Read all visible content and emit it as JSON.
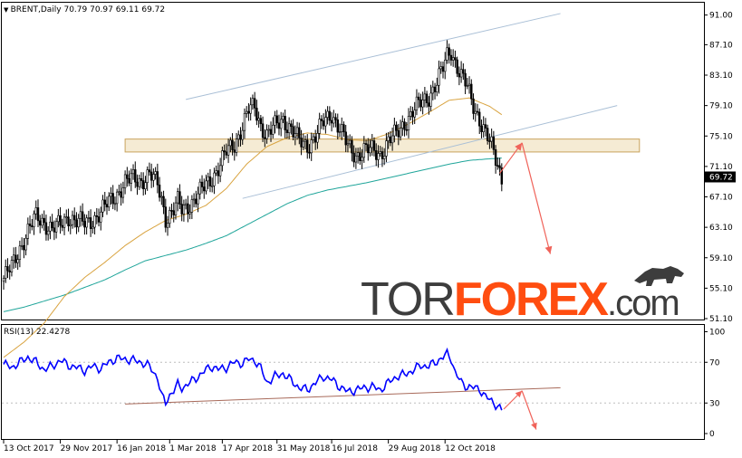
{
  "chart_data": [
    {
      "type": "candlestick",
      "symbol_label": "BRENT,Daily",
      "ohlc_label": "70.79 70.97 69.11 69.72",
      "last_price": "69.72",
      "ylim": [
        51.1,
        92.5
      ],
      "y_ticks": [
        "91.00",
        "87.10",
        "83.10",
        "79.10",
        "75.10",
        "71.10",
        "67.10",
        "63.10",
        "59.10",
        "55.10",
        "51.10"
      ],
      "x_ticks": [
        "13 Oct 2017",
        "29 Nov 2017",
        "16 Jan 2018",
        "1 Mar 2018",
        "17 Apr 2018",
        "31 May 2018",
        "16 Jul 2018",
        "29 Aug 2018",
        "12 Oct 2018"
      ],
      "close_path": [
        [
          0,
          56.4
        ],
        [
          4,
          57.8
        ],
        [
          8,
          60.4
        ],
        [
          12,
          62.6
        ],
        [
          16,
          64.4
        ],
        [
          20,
          63.8
        ],
        [
          24,
          62.9
        ],
        [
          28,
          63.3
        ],
        [
          32,
          64.6
        ],
        [
          36,
          63.9
        ],
        [
          40,
          63.5
        ],
        [
          44,
          64.2
        ],
        [
          48,
          65.0
        ],
        [
          52,
          66.4
        ],
        [
          56,
          67.6
        ],
        [
          60,
          68.9
        ],
        [
          64,
          69.5
        ],
        [
          68,
          69.3
        ],
        [
          72,
          70.0
        ],
        [
          76,
          68.7
        ],
        [
          78,
          66.9
        ],
        [
          80,
          64.4
        ],
        [
          82,
          64.8
        ],
        [
          84,
          65.3
        ],
        [
          86,
          66.3
        ],
        [
          88,
          65.4
        ],
        [
          90,
          65.8
        ],
        [
          94,
          66.7
        ],
        [
          98,
          67.9
        ],
        [
          102,
          69.4
        ],
        [
          106,
          70.9
        ],
        [
          110,
          72.9
        ],
        [
          114,
          74.1
        ],
        [
          118,
          76.4
        ],
        [
          121,
          78.4
        ],
        [
          124,
          78.9
        ],
        [
          127,
          76.6
        ],
        [
          130,
          75.2
        ],
        [
          134,
          76.3
        ],
        [
          138,
          77.4
        ],
        [
          142,
          76.0
        ],
        [
          146,
          74.3
        ],
        [
          150,
          73.9
        ],
        [
          154,
          75.1
        ],
        [
          158,
          76.8
        ],
        [
          162,
          78.1
        ],
        [
          166,
          76.1
        ],
        [
          170,
          73.6
        ],
        [
          174,
          72.6
        ],
        [
          178,
          73.3
        ],
        [
          182,
          73.1
        ],
        [
          186,
          72.8
        ],
        [
          190,
          74.4
        ],
        [
          194,
          75.3
        ],
        [
          198,
          76.9
        ],
        [
          202,
          78.2
        ],
        [
          206,
          79.4
        ],
        [
          210,
          80.4
        ],
        [
          214,
          82.1
        ],
        [
          217,
          83.9
        ],
        [
          219,
          85.7
        ],
        [
          221,
          86.4
        ],
        [
          223,
          84.9
        ],
        [
          226,
          82.9
        ],
        [
          229,
          81.4
        ],
        [
          232,
          79.2
        ],
        [
          235,
          77.4
        ],
        [
          238,
          75.3
        ],
        [
          241,
          73.6
        ],
        [
          244,
          71.4
        ],
        [
          246,
          69.7
        ]
      ],
      "ma_orange": [
        [
          0,
          46.0
        ],
        [
          10,
          48.0
        ],
        [
          20,
          50.5
        ],
        [
          30,
          54.0
        ],
        [
          40,
          56.5
        ],
        [
          50,
          58.5
        ],
        [
          60,
          60.7
        ],
        [
          70,
          62.5
        ],
        [
          80,
          64.0
        ],
        [
          90,
          64.8
        ],
        [
          100,
          66.0
        ],
        [
          110,
          68.2
        ],
        [
          120,
          71.4
        ],
        [
          130,
          73.7
        ],
        [
          140,
          74.9
        ],
        [
          150,
          75.5
        ],
        [
          160,
          75.3
        ],
        [
          170,
          74.6
        ],
        [
          180,
          74.5
        ],
        [
          190,
          75.4
        ],
        [
          200,
          76.7
        ],
        [
          210,
          78.2
        ],
        [
          220,
          79.8
        ],
        [
          230,
          80.1
        ],
        [
          240,
          79.0
        ],
        [
          246,
          77.9
        ]
      ],
      "ma_teal": [
        [
          0,
          52.0
        ],
        [
          10,
          52.6
        ],
        [
          20,
          53.4
        ],
        [
          30,
          54.2
        ],
        [
          40,
          55.2
        ],
        [
          50,
          56.2
        ],
        [
          60,
          57.5
        ],
        [
          70,
          58.7
        ],
        [
          80,
          59.4
        ],
        [
          90,
          60.1
        ],
        [
          100,
          61.0
        ],
        [
          110,
          62.0
        ],
        [
          120,
          63.4
        ],
        [
          130,
          64.8
        ],
        [
          140,
          66.2
        ],
        [
          150,
          67.3
        ],
        [
          160,
          68.0
        ],
        [
          170,
          68.5
        ],
        [
          180,
          69.0
        ],
        [
          190,
          69.6
        ],
        [
          200,
          70.2
        ],
        [
          210,
          70.8
        ],
        [
          220,
          71.4
        ],
        [
          230,
          71.9
        ],
        [
          240,
          72.1
        ],
        [
          246,
          72.2
        ]
      ],
      "channel_upper": [
        [
          90,
          79.9
        ],
        [
          275,
          91.2
        ]
      ],
      "channel_lower": [
        [
          118,
          66.9
        ],
        [
          303,
          79.1
        ]
      ],
      "resistance_zone": {
        "from": 73.0,
        "to": 74.7,
        "x_start": 60,
        "x_end": 314
      },
      "arrows": [
        [
          [
            245,
            70.2
          ],
          [
            256,
            74.2
          ]
        ],
        [
          [
            256,
            74.2
          ],
          [
            270,
            59.6
          ]
        ]
      ]
    },
    {
      "type": "line",
      "indicator_label": "RSI(13) 22.4278",
      "ylim": [
        0,
        100
      ],
      "y_ticks": [
        "100",
        "70",
        "30",
        "0"
      ],
      "rsi": [
        [
          0,
          68
        ],
        [
          4,
          65
        ],
        [
          8,
          70
        ],
        [
          12,
          75
        ],
        [
          16,
          70
        ],
        [
          20,
          63
        ],
        [
          24,
          66
        ],
        [
          28,
          72
        ],
        [
          32,
          67
        ],
        [
          36,
          65
        ],
        [
          40,
          62
        ],
        [
          44,
          66
        ],
        [
          48,
          64
        ],
        [
          52,
          70
        ],
        [
          56,
          74
        ],
        [
          60,
          73
        ],
        [
          64,
          72
        ],
        [
          68,
          70
        ],
        [
          72,
          66
        ],
        [
          76,
          55
        ],
        [
          78,
          37
        ],
        [
          80,
          30
        ],
        [
          82,
          38
        ],
        [
          84,
          42
        ],
        [
          86,
          48
        ],
        [
          88,
          45
        ],
        [
          90,
          47
        ],
        [
          94,
          53
        ],
        [
          98,
          59
        ],
        [
          102,
          66
        ],
        [
          106,
          63
        ],
        [
          110,
          65
        ],
        [
          114,
          70
        ],
        [
          118,
          69
        ],
        [
          121,
          73
        ],
        [
          124,
          72
        ],
        [
          127,
          64
        ],
        [
          130,
          50
        ],
        [
          134,
          56
        ],
        [
          138,
          59
        ],
        [
          142,
          52
        ],
        [
          146,
          45
        ],
        [
          150,
          43
        ],
        [
          154,
          50
        ],
        [
          158,
          56
        ],
        [
          162,
          53
        ],
        [
          166,
          46
        ],
        [
          170,
          41
        ],
        [
          174,
          43
        ],
        [
          178,
          45
        ],
        [
          182,
          46
        ],
        [
          186,
          43
        ],
        [
          190,
          50
        ],
        [
          194,
          56
        ],
        [
          198,
          58
        ],
        [
          202,
          62
        ],
        [
          206,
          67
        ],
        [
          210,
          66
        ],
        [
          214,
          71
        ],
        [
          217,
          75
        ],
        [
          219,
          78
        ],
        [
          221,
          74
        ],
        [
          223,
          60
        ],
        [
          226,
          50
        ],
        [
          229,
          46
        ],
        [
          232,
          45
        ],
        [
          235,
          44
        ],
        [
          238,
          36
        ],
        [
          241,
          32
        ],
        [
          244,
          27
        ],
        [
          246,
          22
        ]
      ],
      "trend_line": [
        [
          60,
          29
        ],
        [
          275,
          45
        ]
      ],
      "arrows": [
        [
          [
            247,
            24
          ],
          [
            256,
            42
          ]
        ],
        [
          [
            256,
            42
          ],
          [
            263,
            4
          ]
        ]
      ]
    }
  ],
  "watermark": {
    "part1": "TOR",
    "part2": "FOREX",
    "part3": ".com"
  }
}
